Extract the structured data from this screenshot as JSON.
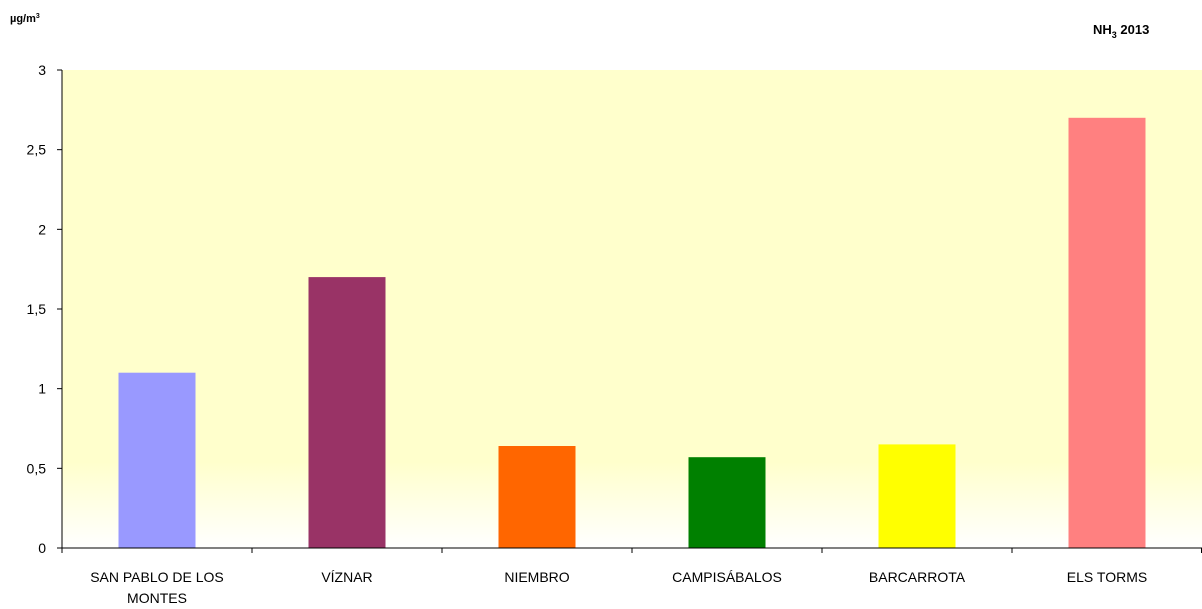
{
  "chart_data": {
    "type": "bar",
    "title_main": "NH",
    "title_sub": "3",
    "title_rest": " 2013",
    "ylabel_main": "µg/m",
    "ylabel_sup": "3",
    "categories": [
      [
        "SAN PABLO DE LOS",
        "MONTES"
      ],
      [
        "VÍZNAR"
      ],
      [
        "NIEMBRO"
      ],
      [
        "CAMPISÁBALOS"
      ],
      [
        "BARCARROTA"
      ],
      [
        "ELS TORMS"
      ]
    ],
    "values": [
      1.1,
      1.7,
      0.64,
      0.57,
      0.65,
      2.7
    ],
    "colors": [
      "#9999FF",
      "#993366",
      "#FF6600",
      "#008000",
      "#FFFF00",
      "#FF8080"
    ],
    "ylim": [
      0,
      3
    ],
    "yticks": [
      0,
      0.5,
      1,
      1.5,
      2,
      2.5,
      3
    ],
    "ytick_labels": [
      "0",
      "0,5",
      "1",
      "1,5",
      "2",
      "2,5",
      "3"
    ],
    "background_gradient": [
      "#FFFFCC",
      "#FFFFFF"
    ],
    "grid": false,
    "legend": "none"
  }
}
